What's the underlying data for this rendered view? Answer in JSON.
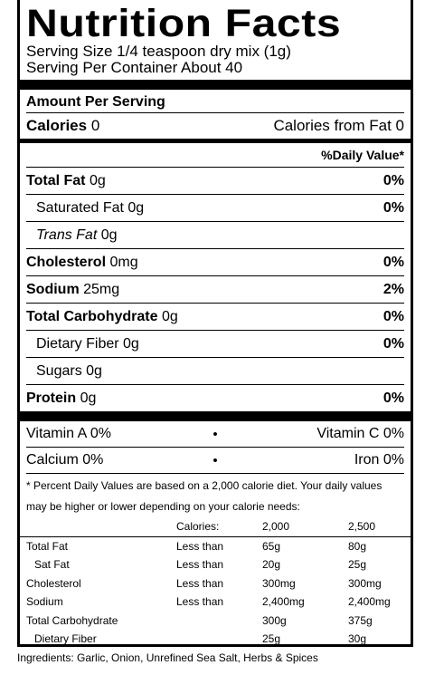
{
  "title": "Nutrition Facts",
  "serving_size": "Serving Size 1/4 teaspoon dry mix (1g)",
  "servings_per_container": "Serving Per Container About 40",
  "amount_per_serving": "Amount Per Serving",
  "calories": {
    "label": "Calories",
    "value": "0",
    "from_fat": "Calories from Fat 0"
  },
  "daily_value_header": "%Daily Value*",
  "nutrients": [
    {
      "name": "Total Fat",
      "amount": "0g",
      "pct": "0%",
      "bold": true,
      "indent": false,
      "italic": false
    },
    {
      "name": "Saturated Fat",
      "amount": "0g",
      "pct": "0%",
      "bold": false,
      "indent": true,
      "italic": false
    },
    {
      "name": "Trans Fat",
      "amount": "0g",
      "pct": "",
      "bold": false,
      "indent": true,
      "italic": true
    },
    {
      "name": "Cholesterol",
      "amount": "0mg",
      "pct": "0%",
      "bold": true,
      "indent": false,
      "italic": false
    },
    {
      "name": "Sodium",
      "amount": "25mg",
      "pct": "2%",
      "bold": true,
      "indent": false,
      "italic": false
    },
    {
      "name": "Total Carbohydrate",
      "amount": "0g",
      "pct": "0%",
      "bold": true,
      "indent": false,
      "italic": false
    },
    {
      "name": "Dietary Fiber",
      "amount": "0g",
      "pct": "0%",
      "bold": false,
      "indent": true,
      "italic": false
    },
    {
      "name": "Sugars",
      "amount": "0g",
      "pct": "",
      "bold": false,
      "indent": true,
      "italic": false
    },
    {
      "name": "Protein",
      "amount": "0g",
      "pct": "0%",
      "bold": true,
      "indent": false,
      "italic": false
    }
  ],
  "vitamins": [
    {
      "left": "Vitamin A 0%",
      "right": "Vitamin C 0%"
    },
    {
      "left": "Calcium 0%",
      "right": "Iron 0%"
    }
  ],
  "bullet": "•",
  "footnote": "* Percent Daily Values are based on a 2,000 calorie diet. Your daily values may be higher or lower depending on your calorie needs:",
  "dv_table": {
    "header": [
      "",
      "Calories:",
      "2,000",
      "2,500"
    ],
    "rows": [
      [
        "Total Fat",
        "Less than",
        "65g",
        "80g"
      ],
      [
        "Sat Fat",
        "Less than",
        "20g",
        "25g"
      ],
      [
        "Cholesterol",
        "Less than",
        "300mg",
        "300mg"
      ],
      [
        "Sodium",
        "Less than",
        "2,400mg",
        "2,400mg"
      ],
      [
        "Total Carbohydrate",
        "",
        "300g",
        "375g"
      ],
      [
        "Dietary Fiber",
        "",
        "25g",
        "30g"
      ]
    ]
  },
  "ingredients": "Ingredients: Garlic, Onion, Unrefined Sea Salt, Herbs & Spices"
}
